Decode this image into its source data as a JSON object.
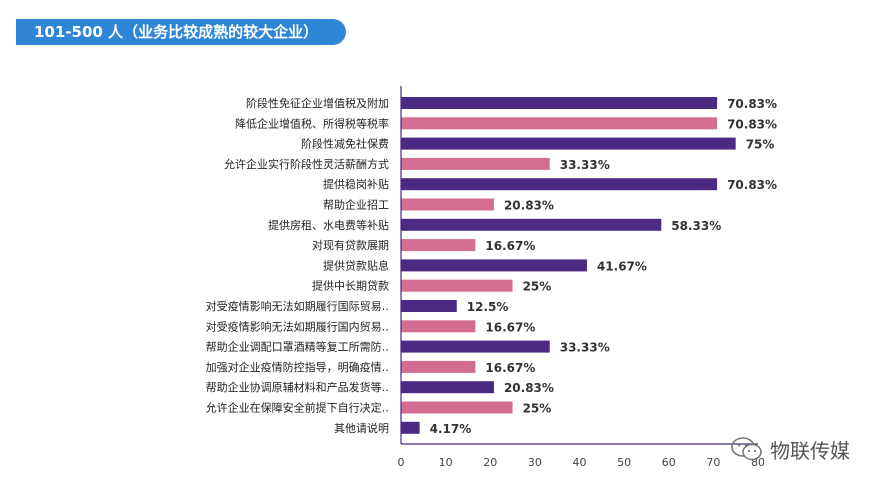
{
  "title": "101-500 人（业务比较成熟的较大企业）",
  "watermark_text": "物联传媒",
  "colors": {
    "dark": "#4b2a84",
    "pink": "#d46d92",
    "axis": "#4b2a84",
    "title_bg": "#2f86d6"
  },
  "chart_data": {
    "type": "bar",
    "orientation": "horizontal",
    "categories": [
      "阶段性免征企业增值税及附加",
      "降低企业增值税、所得税等税率",
      "阶段性减免社保费",
      "允许企业实行阶段性灵活薪酬方式",
      "提供稳岗补贴",
      "帮助企业招工",
      "提供房租、水电费等补贴",
      "对现有贷款展期",
      "提供贷款贴息",
      "提供中长期贷款",
      "对受疫情影响无法如期履行国际贸易‥",
      "对受疫情影响无法如期履行国内贸易‥",
      "帮助企业调配口罩酒精等复工所需防‥",
      "加强对企业疫情防控指导，明确疫情‥",
      "帮助企业协调原辅材料和产品发货等‥",
      "允许企业在保障安全前提下自行决定‥",
      "其他请说明"
    ],
    "values": [
      70.83,
      70.83,
      75,
      33.33,
      70.83,
      20.83,
      58.33,
      16.67,
      41.67,
      25,
      12.5,
      16.67,
      33.33,
      16.67,
      20.83,
      25,
      4.17
    ],
    "value_labels": [
      "70.83%",
      "70.83%",
      "75%",
      "33.33%",
      "70.83%",
      "20.83%",
      "58.33%",
      "16.67%",
      "41.67%",
      "25%",
      "12.5%",
      "16.67%",
      "33.33%",
      "16.67%",
      "20.83%",
      "25%",
      "4.17%"
    ],
    "xticks": [
      0,
      10,
      20,
      30,
      40,
      50,
      60,
      70,
      80
    ],
    "xlim": [
      0,
      80
    ],
    "grid": false
  }
}
